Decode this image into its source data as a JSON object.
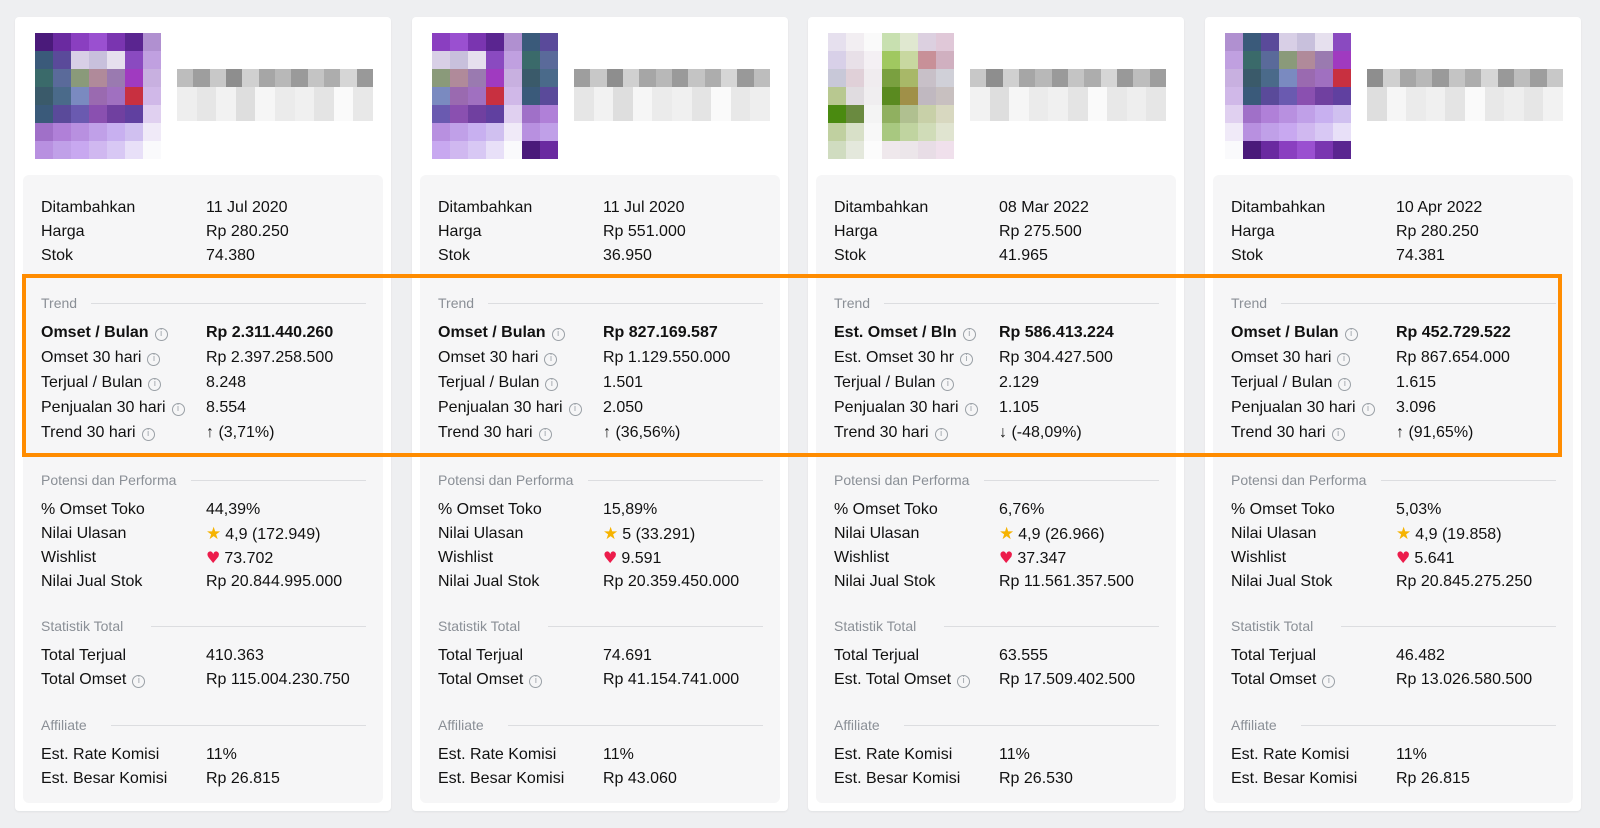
{
  "sections": {
    "trend": "Trend",
    "potensi": "Potensi dan Performa",
    "statistik": "Statistik Total",
    "affiliate": "Affiliate"
  },
  "info_glyph": "i",
  "colors": {
    "highlight": "#ff8c00",
    "star": "#f6b300",
    "heart": "#ec1c4b"
  },
  "products": [
    {
      "added_label": "Ditambahkan",
      "added": "11 Jul 2020",
      "price_label": "Harga",
      "price": "Rp 280.250",
      "stock_label": "Stok",
      "stock": "74.380",
      "omset_bulan_label": "Omset / Bulan",
      "omset_bulan": "Rp 2.311.440.260",
      "omset30_label": "Omset 30 hari",
      "omset30": "Rp 2.397.258.500",
      "terjual_bulan_label": "Terjual / Bulan",
      "terjual_bulan": "8.248",
      "penjualan30_label": "Penjualan 30 hari",
      "penjualan30": "8.554",
      "trend30_label": "Trend 30 hari",
      "trend30": "↑ (3,71%)",
      "omset_toko_label": "% Omset Toko",
      "omset_toko": "44,39%",
      "ulasan_label": "Nilai Ulasan",
      "ulasan": "4,9 (172.949)",
      "wishlist_label": "Wishlist",
      "wishlist": "73.702",
      "nilai_stok_label": "Nilai Jual Stok",
      "nilai_stok": "Rp 20.844.995.000",
      "total_terjual_label": "Total Terjual",
      "total_terjual": "410.363",
      "total_omset_label": "Total Omset",
      "total_omset": "Rp 115.004.230.750",
      "rate_label": "Est. Rate Komisi",
      "rate": "11%",
      "besar_label": "Est. Besar Komisi",
      "besar": "Rp 26.815"
    },
    {
      "added_label": "Ditambahkan",
      "added": "11 Jul 2020",
      "price_label": "Harga",
      "price": "Rp 551.000",
      "stock_label": "Stok",
      "stock": "36.950",
      "omset_bulan_label": "Omset / Bulan",
      "omset_bulan": "Rp 827.169.587",
      "omset30_label": "Omset 30 hari",
      "omset30": "Rp 1.129.550.000",
      "terjual_bulan_label": "Terjual / Bulan",
      "terjual_bulan": "1.501",
      "penjualan30_label": "Penjualan 30 hari",
      "penjualan30": "2.050",
      "trend30_label": "Trend 30 hari",
      "trend30": "↑ (36,56%)",
      "omset_toko_label": "% Omset Toko",
      "omset_toko": "15,89%",
      "ulasan_label": "Nilai Ulasan",
      "ulasan": "5 (33.291)",
      "wishlist_label": "Wishlist",
      "wishlist": "9.591",
      "nilai_stok_label": "Nilai Jual Stok",
      "nilai_stok": "Rp 20.359.450.000",
      "total_terjual_label": "Total Terjual",
      "total_terjual": "74.691",
      "total_omset_label": "Total Omset",
      "total_omset": "Rp 41.154.741.000",
      "rate_label": "Est. Rate Komisi",
      "rate": "11%",
      "besar_label": "Est. Besar Komisi",
      "besar": "Rp 43.060"
    },
    {
      "added_label": "Ditambahkan",
      "added": "08 Mar 2022",
      "price_label": "Harga",
      "price": "Rp 275.500",
      "stock_label": "Stok",
      "stock": "41.965",
      "omset_bulan_label": "Est. Omset / Bln",
      "omset_bulan": "Rp 586.413.224",
      "omset30_label": "Est. Omset 30 hr",
      "omset30": "Rp 304.427.500",
      "terjual_bulan_label": "Terjual / Bulan",
      "terjual_bulan": "2.129",
      "penjualan30_label": "Penjualan 30 hari",
      "penjualan30": "1.105",
      "trend30_label": "Trend 30 hari",
      "trend30": "↓ (-48,09%)",
      "omset_toko_label": "% Omset Toko",
      "omset_toko": "6,76%",
      "ulasan_label": "Nilai Ulasan",
      "ulasan": "4,9 (26.966)",
      "wishlist_label": "Wishlist",
      "wishlist": "37.347",
      "nilai_stok_label": "Nilai Jual Stok",
      "nilai_stok": "Rp 11.561.357.500",
      "total_terjual_label": "Total Terjual",
      "total_terjual": "63.555",
      "total_omset_label": "Est. Total Omset",
      "total_omset": "Rp 17.509.402.500",
      "rate_label": "Est. Rate Komisi",
      "rate": "11%",
      "besar_label": "Est. Besar Komisi",
      "besar": "Rp 26.530"
    },
    {
      "added_label": "Ditambahkan",
      "added": "10 Apr 2022",
      "price_label": "Harga",
      "price": "Rp 280.250",
      "stock_label": "Stok",
      "stock": "74.381",
      "omset_bulan_label": "Omset / Bulan",
      "omset_bulan": "Rp 452.729.522",
      "omset30_label": "Omset 30 hari",
      "omset30": "Rp 867.654.000",
      "terjual_bulan_label": "Terjual / Bulan",
      "terjual_bulan": "1.615",
      "penjualan30_label": "Penjualan 30 hari",
      "penjualan30": "3.096",
      "trend30_label": "Trend 30 hari",
      "trend30": "↑ (91,65%)",
      "omset_toko_label": "% Omset Toko",
      "omset_toko": "5,03%",
      "ulasan_label": "Nilai Ulasan",
      "ulasan": "4,9 (19.858)",
      "wishlist_label": "Wishlist",
      "wishlist": "5.641",
      "nilai_stok_label": "Nilai Jual Stok",
      "nilai_stok": "Rp 20.845.275.250",
      "total_terjual_label": "Total Terjual",
      "total_terjual": "46.482",
      "total_omset_label": "Total Omset",
      "total_omset": "Rp 13.026.580.500",
      "rate_label": "Est. Rate Komisi",
      "rate": "11%",
      "besar_label": "Est. Besar Komisi",
      "besar": "Rp 26.815"
    }
  ]
}
